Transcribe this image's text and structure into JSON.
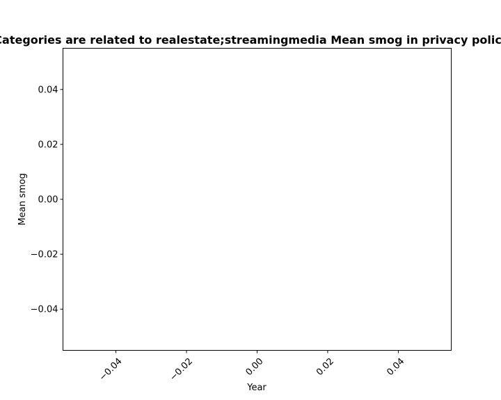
{
  "chart_data": {
    "type": "line",
    "title": "Categories are related to realestate;streamingmedia Mean smog in privacy policies",
    "xlabel": "Year",
    "ylabel": "Mean smog",
    "xlim": [
      -0.055,
      0.055
    ],
    "ylim": [
      -0.055,
      0.055
    ],
    "x_ticks": [
      "−0.04",
      "−0.02",
      "0.00",
      "0.02",
      "0.04"
    ],
    "x_tick_values": [
      -0.04,
      -0.02,
      0.0,
      0.02,
      0.04
    ],
    "y_ticks": [
      "−0.04",
      "−0.02",
      "0.00",
      "0.02",
      "0.04"
    ],
    "y_tick_values": [
      -0.04,
      -0.02,
      0.0,
      0.02,
      0.04
    ],
    "x_tick_rotation": "45 degrees",
    "grid": false,
    "series": [
      {
        "x": [],
        "y": []
      }
    ]
  }
}
